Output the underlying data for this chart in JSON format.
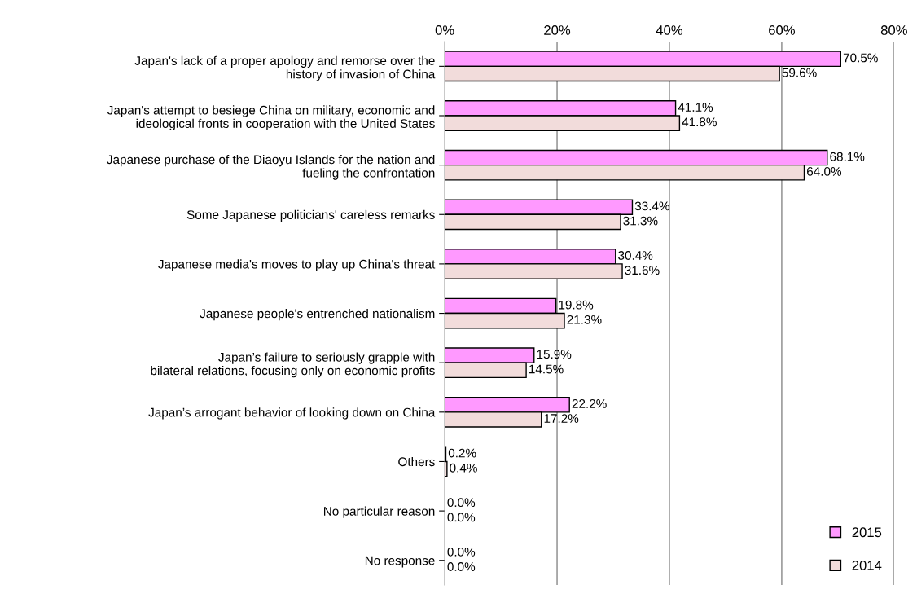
{
  "chart_data": {
    "type": "bar",
    "orientation": "horizontal",
    "categories": [
      "Japan's lack of a proper apology and remorse over the\nhistory of invasion of China",
      "Japan's attempt to besiege China on military, economic and\nideological fronts in cooperation with the United States",
      "Japanese purchase of the Diaoyu Islands for the nation and\nfueling the confrontation",
      "Some Japanese politicians' careless remarks",
      "Japanese media's moves to play up China's threat",
      "Japanese people's entrenched nationalism",
      "Japan’s failure to seriously grapple with\nbilateral relations, focusing only on economic profits",
      "Japan’s arrogant behavior of looking down on China",
      "Others",
      "No particular reason",
      "No response"
    ],
    "series": [
      {
        "name": "2015",
        "color": "#ff99ff",
        "values": [
          70.5,
          41.1,
          68.1,
          33.4,
          30.4,
          19.8,
          15.9,
          22.2,
          0.2,
          0.0,
          0.0
        ],
        "value_labels": [
          "70.5%",
          "41.1%",
          "68.1%",
          "33.4%",
          "30.4%",
          "19.8%",
          "15.9%",
          "22.2%",
          "0.2%",
          "0.0%",
          "0.0%"
        ]
      },
      {
        "name": "2014",
        "color": "#f2dcdb",
        "values": [
          59.6,
          41.8,
          64.0,
          31.3,
          31.6,
          21.3,
          14.5,
          17.2,
          0.4,
          0.0,
          0.0
        ],
        "value_labels": [
          "59.6%",
          "41.8%",
          "64.0%",
          "31.3%",
          "31.6%",
          "21.3%",
          "14.5%",
          "17.2%",
          "0.4%",
          "0.0%",
          "0.0%"
        ]
      }
    ],
    "xlim": [
      0,
      80
    ],
    "xticks": [
      {
        "value": 0,
        "label": "0%"
      },
      {
        "value": 20,
        "label": "20%"
      },
      {
        "value": 40,
        "label": "40%"
      },
      {
        "value": 60,
        "label": "60%"
      },
      {
        "value": 80,
        "label": "80%"
      }
    ],
    "grid": "x",
    "legend": "bottom right"
  }
}
